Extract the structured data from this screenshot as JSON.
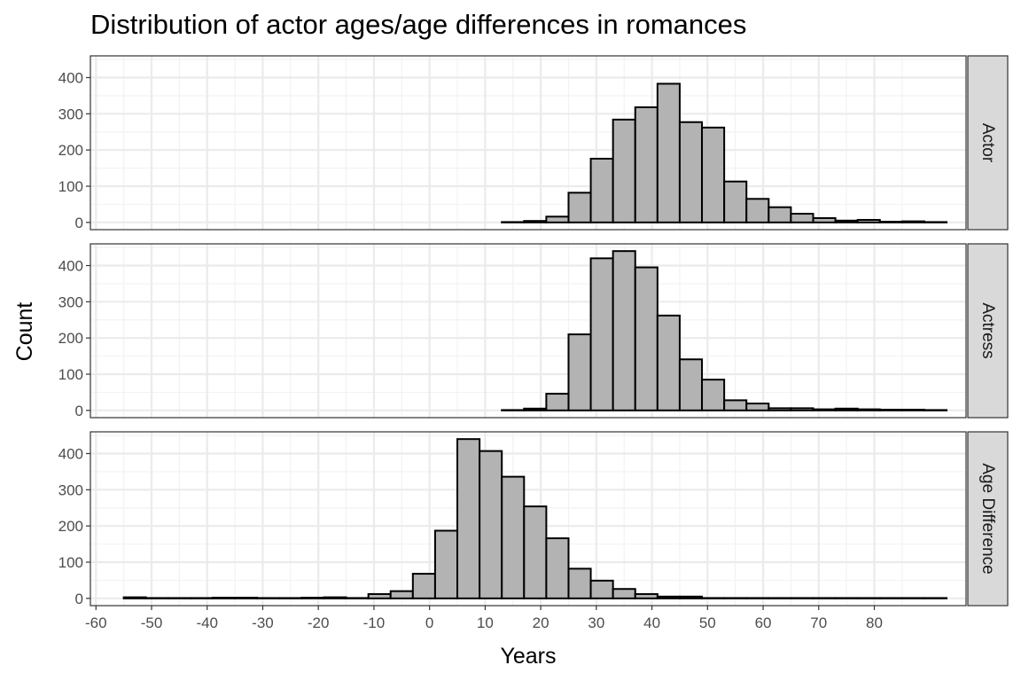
{
  "chart_data": {
    "type": "bar",
    "subtype": "histogram",
    "title": "Distribution of actor ages/age differences in romances",
    "xlabel": "Years",
    "ylabel": "Count",
    "x_ticks": [
      -60,
      -50,
      -40,
      -30,
      -20,
      -10,
      0,
      10,
      20,
      30,
      40,
      50,
      60,
      70,
      80
    ],
    "y_ticks": [
      0,
      100,
      200,
      300,
      400
    ],
    "xlim": [
      -61,
      96.5
    ],
    "ylim": [
      -20,
      460
    ],
    "bin_width": 4,
    "bin_start": -55,
    "grid": true,
    "bar_fill": "#b3b3b3",
    "bar_outline": "#000000",
    "strip_fill": "#d9d9d9",
    "facets": [
      {
        "name": "Actor",
        "values": [
          0,
          0,
          0,
          0,
          0,
          0,
          0,
          0,
          0,
          0,
          0,
          0,
          0,
          0,
          0,
          0,
          0,
          1,
          4,
          16,
          82,
          176,
          284,
          318,
          383,
          277,
          262,
          113,
          65,
          42,
          24,
          12,
          5,
          7,
          2,
          3,
          1
        ]
      },
      {
        "name": "Actress",
        "values": [
          0,
          0,
          0,
          0,
          0,
          0,
          0,
          0,
          0,
          0,
          0,
          0,
          0,
          0,
          0,
          0,
          0,
          1,
          5,
          46,
          210,
          420,
          440,
          395,
          262,
          141,
          85,
          28,
          19,
          6,
          6,
          3,
          5,
          3,
          2,
          2,
          1
        ]
      },
      {
        "name": "Age Difference",
        "values": [
          3,
          1,
          1,
          1,
          2,
          2,
          1,
          1,
          2,
          3,
          1,
          12,
          20,
          68,
          187,
          440,
          407,
          336,
          254,
          166,
          82,
          49,
          26,
          12,
          5,
          5,
          1,
          1,
          1,
          1,
          1,
          1,
          1,
          1,
          1,
          1,
          1
        ]
      }
    ]
  }
}
